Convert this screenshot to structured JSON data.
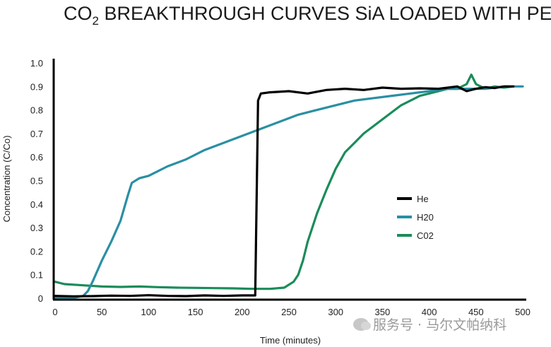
{
  "chart_data": {
    "type": "line",
    "title_prefix": "CO",
    "title_sub": "2",
    "title_rest": " BREAKTHROUGH CURVES SiA LOADED WITH PEI",
    "xlabel": "Time (minutes)",
    "ylabel": "Concentration (C/Co)",
    "xlim": [
      0,
      500
    ],
    "ylim": [
      0,
      1.0
    ],
    "x_ticks": [
      "0",
      "50",
      "100",
      "150",
      "200",
      "250",
      "300",
      "350",
      "400",
      "450",
      "500"
    ],
    "y_ticks": [
      "0",
      "0.1",
      "0.2",
      "0.3",
      "0.4",
      "0.5",
      "0.6",
      "0.7",
      "0.8",
      "0.9",
      "1.0"
    ],
    "grid": false,
    "legend_position": "right",
    "series": [
      {
        "name": "He",
        "color": "#000000",
        "x": [
          0,
          20,
          40,
          60,
          80,
          100,
          120,
          140,
          160,
          180,
          200,
          210,
          214,
          217,
          220,
          230,
          250,
          270,
          290,
          310,
          330,
          350,
          370,
          390,
          410,
          420,
          430,
          440,
          450,
          460,
          470,
          480,
          490
        ],
        "y": [
          0.01,
          0.008,
          0.009,
          0.011,
          0.01,
          0.013,
          0.01,
          0.009,
          0.012,
          0.01,
          0.012,
          0.012,
          0.012,
          0.84,
          0.87,
          0.875,
          0.88,
          0.87,
          0.885,
          0.89,
          0.885,
          0.895,
          0.89,
          0.892,
          0.89,
          0.895,
          0.9,
          0.88,
          0.89,
          0.897,
          0.893,
          0.9,
          0.9
        ]
      },
      {
        "name": "H20",
        "color": "#2a8fa3",
        "x": [
          0,
          20,
          30,
          35,
          40,
          50,
          60,
          70,
          78,
          82,
          90,
          100,
          120,
          140,
          160,
          180,
          200,
          220,
          240,
          260,
          280,
          300,
          320,
          340,
          360,
          380,
          400,
          420,
          440,
          460,
          480,
          500
        ],
        "y": [
          0.002,
          0.002,
          0.01,
          0.03,
          0.07,
          0.16,
          0.24,
          0.33,
          0.44,
          0.49,
          0.51,
          0.52,
          0.56,
          0.59,
          0.63,
          0.66,
          0.69,
          0.72,
          0.75,
          0.78,
          0.8,
          0.82,
          0.84,
          0.85,
          0.86,
          0.87,
          0.88,
          0.89,
          0.89,
          0.89,
          0.9,
          0.9
        ]
      },
      {
        "name": "C02",
        "color": "#1b8c5a",
        "x": [
          0,
          10,
          30,
          50,
          70,
          90,
          110,
          130,
          150,
          170,
          190,
          210,
          230,
          245,
          255,
          260,
          265,
          270,
          280,
          290,
          300,
          310,
          320,
          330,
          340,
          350,
          360,
          370,
          380,
          390,
          400,
          410,
          420,
          430,
          440,
          445,
          450,
          460,
          470,
          480,
          490
        ],
        "y": [
          0.07,
          0.06,
          0.055,
          0.05,
          0.048,
          0.05,
          0.047,
          0.045,
          0.044,
          0.043,
          0.042,
          0.04,
          0.04,
          0.045,
          0.07,
          0.1,
          0.16,
          0.24,
          0.36,
          0.46,
          0.55,
          0.62,
          0.66,
          0.7,
          0.73,
          0.76,
          0.79,
          0.82,
          0.84,
          0.86,
          0.87,
          0.88,
          0.89,
          0.89,
          0.91,
          0.95,
          0.91,
          0.89,
          0.9,
          0.895,
          0.9
        ]
      }
    ]
  },
  "watermark": {
    "text": "服务号 · 马尔文帕纳科"
  }
}
